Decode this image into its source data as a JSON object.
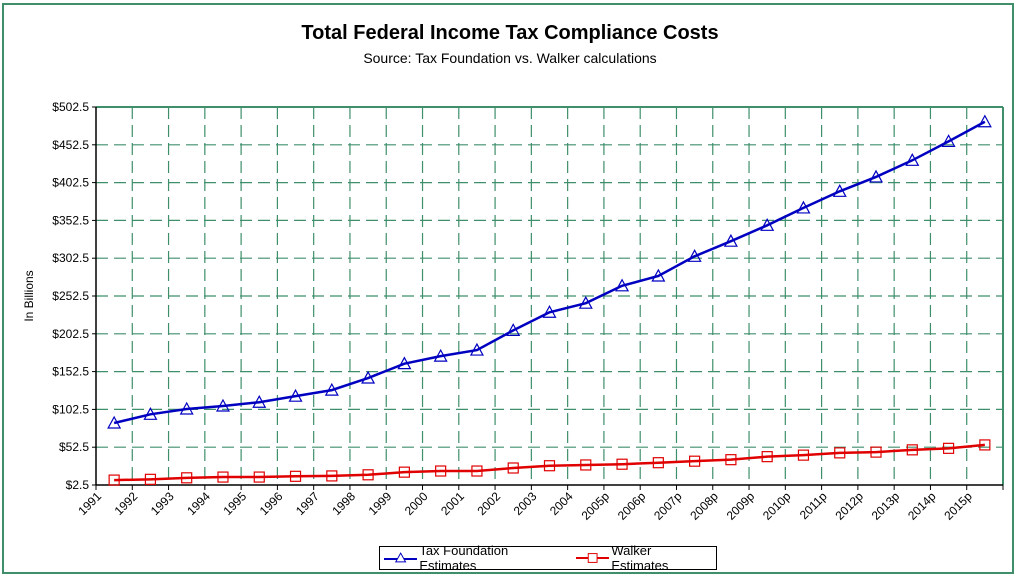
{
  "chart_data": {
    "type": "line",
    "title": "Total Federal Income Tax Compliance Costs",
    "subtitle": "Source: Tax Foundation vs. Walker calculations",
    "xlabel": "",
    "ylabel": "In Billions",
    "ylim": [
      2.5,
      502.5
    ],
    "yticks": [
      2.5,
      52.5,
      102.5,
      152.5,
      202.5,
      252.5,
      302.5,
      352.5,
      402.5,
      452.5,
      502.5
    ],
    "ytick_labels": [
      "$2.5",
      "$52.5",
      "$102.5",
      "$152.5",
      "$202.5",
      "$252.5",
      "$302.5",
      "$352.5",
      "$402.5",
      "$452.5",
      "$502.5"
    ],
    "grid": true,
    "legend_position": "bottom",
    "categories": [
      "1991",
      "1992",
      "1993",
      "1994",
      "1995",
      "1996",
      "1997",
      "1998",
      "1999",
      "2000",
      "2001",
      "2002",
      "2003",
      "2004",
      "2005p",
      "2006p",
      "2007p",
      "2008p",
      "2009p",
      "2010p",
      "2011p",
      "2012p",
      "2013p",
      "2014p",
      "2015p"
    ],
    "series": [
      {
        "name": "Tax Foundation Estimates",
        "color": "#0000c0",
        "marker": "triangle",
        "values": [
          84.5,
          96,
          103,
          107,
          112,
          120,
          128,
          144,
          163,
          173,
          181,
          207,
          231,
          243,
          266,
          279,
          305,
          325,
          346,
          369,
          391,
          410,
          432,
          457,
          483
        ]
      },
      {
        "name": "Walker Estimates",
        "color": "#e00000",
        "marker": "square",
        "values": [
          9,
          10,
          12,
          13,
          13,
          14,
          14.5,
          16,
          19.5,
          21,
          21,
          25,
          28,
          29,
          30,
          32,
          34,
          36,
          40,
          42,
          45,
          46,
          49,
          51,
          55.5
        ]
      }
    ]
  },
  "colors": {
    "frame": "#3f8f6b",
    "grid": "#3f8f6b"
  }
}
